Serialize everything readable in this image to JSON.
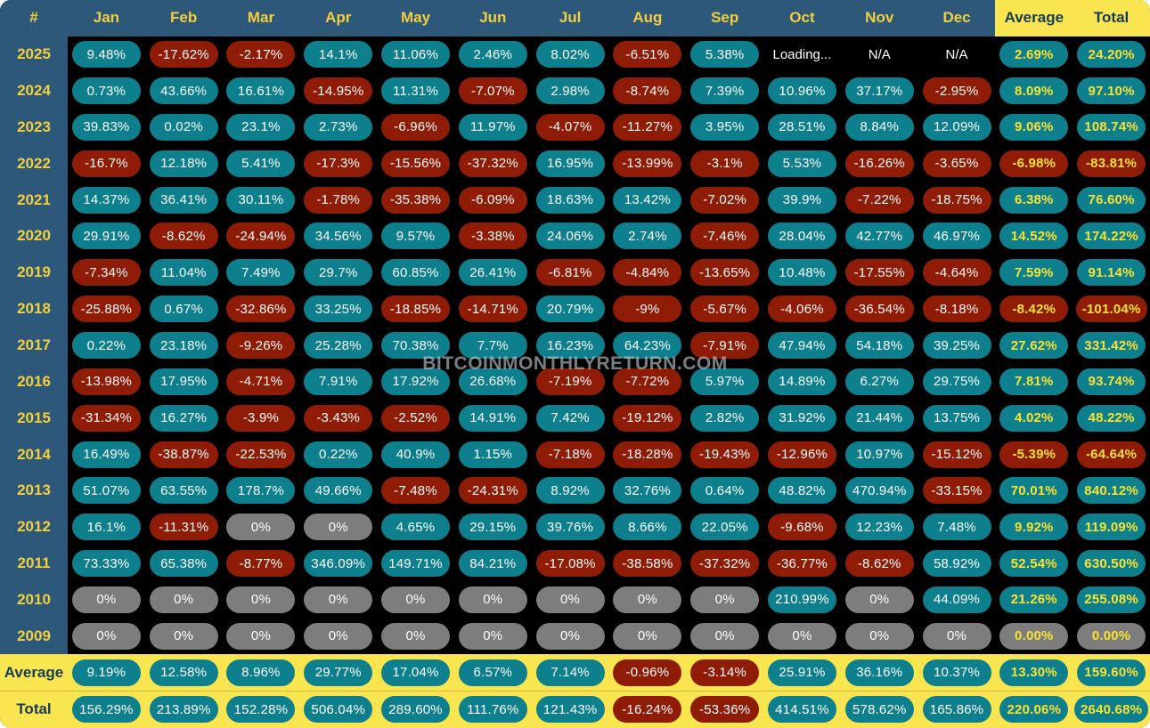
{
  "watermark": "BITCOINMONTHLYRETURN.COM",
  "colors": {
    "positive_pill": "#0e7f8c",
    "negative_pill": "#8e1c07",
    "zero_pill": "#7d7d7d",
    "header_bg": "#2e587a",
    "header_text": "#f2cf3c",
    "accent_yellow_bg": "#f8e54f",
    "accent_dark_text": "#173a57",
    "highlight_value_text": "#f8e234",
    "pill_text": "#fdfdfd",
    "table_bg": "#000000"
  },
  "chart_data": {
    "type": "table",
    "columns": [
      "#",
      "Jan",
      "Feb",
      "Mar",
      "Apr",
      "May",
      "Jun",
      "Jul",
      "Aug",
      "Sep",
      "Oct",
      "Nov",
      "Dec",
      "Average",
      "Total"
    ],
    "rows": [
      {
        "year": "2025",
        "values": [
          "9.48%",
          "-17.62%",
          "-2.17%",
          "14.1%",
          "11.06%",
          "2.46%",
          "8.02%",
          "-6.51%",
          "5.38%",
          "Loading...",
          "N/A",
          "N/A",
          "2.69%",
          "24.20%"
        ]
      },
      {
        "year": "2024",
        "values": [
          "0.73%",
          "43.66%",
          "16.61%",
          "-14.95%",
          "11.31%",
          "-7.07%",
          "2.98%",
          "-8.74%",
          "7.39%",
          "10.96%",
          "37.17%",
          "-2.95%",
          "8.09%",
          "97.10%"
        ]
      },
      {
        "year": "2023",
        "values": [
          "39.83%",
          "0.02%",
          "23.1%",
          "2.73%",
          "-6.96%",
          "11.97%",
          "-4.07%",
          "-11.27%",
          "3.95%",
          "28.51%",
          "8.84%",
          "12.09%",
          "9.06%",
          "108.74%"
        ]
      },
      {
        "year": "2022",
        "values": [
          "-16.7%",
          "12.18%",
          "5.41%",
          "-17.3%",
          "-15.56%",
          "-37.32%",
          "16.95%",
          "-13.99%",
          "-3.1%",
          "5.53%",
          "-16.26%",
          "-3.65%",
          "-6.98%",
          "-83.81%"
        ]
      },
      {
        "year": "2021",
        "values": [
          "14.37%",
          "36.41%",
          "30.11%",
          "-1.78%",
          "-35.38%",
          "-6.09%",
          "18.63%",
          "13.42%",
          "-7.02%",
          "39.9%",
          "-7.22%",
          "-18.75%",
          "6.38%",
          "76.60%"
        ]
      },
      {
        "year": "2020",
        "values": [
          "29.91%",
          "-8.62%",
          "-24.94%",
          "34.56%",
          "9.57%",
          "-3.38%",
          "24.06%",
          "2.74%",
          "-7.46%",
          "28.04%",
          "42.77%",
          "46.97%",
          "14.52%",
          "174.22%"
        ]
      },
      {
        "year": "2019",
        "values": [
          "-7.34%",
          "11.04%",
          "7.49%",
          "29.7%",
          "60.85%",
          "26.41%",
          "-6.81%",
          "-4.84%",
          "-13.65%",
          "10.48%",
          "-17.55%",
          "-4.64%",
          "7.59%",
          "91.14%"
        ]
      },
      {
        "year": "2018",
        "values": [
          "-25.88%",
          "0.67%",
          "-32.86%",
          "33.25%",
          "-18.85%",
          "-14.71%",
          "20.79%",
          "-9%",
          "-5.67%",
          "-4.06%",
          "-36.54%",
          "-8.18%",
          "-8.42%",
          "-101.04%"
        ]
      },
      {
        "year": "2017",
        "values": [
          "0.22%",
          "23.18%",
          "-9.26%",
          "25.28%",
          "70.38%",
          "7.7%",
          "16.23%",
          "64.23%",
          "-7.91%",
          "47.94%",
          "54.18%",
          "39.25%",
          "27.62%",
          "331.42%"
        ]
      },
      {
        "year": "2016",
        "values": [
          "-13.98%",
          "17.95%",
          "-4.71%",
          "7.91%",
          "17.92%",
          "26.68%",
          "-7.19%",
          "-7.72%",
          "5.97%",
          "14.89%",
          "6.27%",
          "29.75%",
          "7.81%",
          "93.74%"
        ]
      },
      {
        "year": "2015",
        "values": [
          "-31.34%",
          "16.27%",
          "-3.9%",
          "-3.43%",
          "-2.52%",
          "14.91%",
          "7.42%",
          "-19.12%",
          "2.82%",
          "31.92%",
          "21.44%",
          "13.75%",
          "4.02%",
          "48.22%"
        ]
      },
      {
        "year": "2014",
        "values": [
          "16.49%",
          "-38.87%",
          "-22.53%",
          "0.22%",
          "40.9%",
          "1.15%",
          "-7.18%",
          "-18.28%",
          "-19.43%",
          "-12.96%",
          "10.97%",
          "-15.12%",
          "-5.39%",
          "-64.64%"
        ]
      },
      {
        "year": "2013",
        "values": [
          "51.07%",
          "63.55%",
          "178.7%",
          "49.66%",
          "-7.48%",
          "-24.31%",
          "8.92%",
          "32.76%",
          "0.64%",
          "48.82%",
          "470.94%",
          "-33.15%",
          "70.01%",
          "840.12%"
        ]
      },
      {
        "year": "2012",
        "values": [
          "16.1%",
          "-11.31%",
          "0%",
          "0%",
          "4.65%",
          "29.15%",
          "39.76%",
          "8.66%",
          "22.05%",
          "-9.68%",
          "12.23%",
          "7.48%",
          "9.92%",
          "119.09%"
        ]
      },
      {
        "year": "2011",
        "values": [
          "73.33%",
          "65.38%",
          "-8.77%",
          "346.09%",
          "149.71%",
          "84.21%",
          "-17.08%",
          "-38.58%",
          "-37.32%",
          "-36.77%",
          "-8.62%",
          "58.92%",
          "52.54%",
          "630.50%"
        ]
      },
      {
        "year": "2010",
        "values": [
          "0%",
          "0%",
          "0%",
          "0%",
          "0%",
          "0%",
          "0%",
          "0%",
          "0%",
          "210.99%",
          "0%",
          "44.09%",
          "21.26%",
          "255.08%"
        ]
      },
      {
        "year": "2009",
        "values": [
          "0%",
          "0%",
          "0%",
          "0%",
          "0%",
          "0%",
          "0%",
          "0%",
          "0%",
          "0%",
          "0%",
          "0%",
          "0.00%",
          "0.00%"
        ]
      }
    ],
    "footer_rows": [
      {
        "label": "Average",
        "values": [
          "9.19%",
          "12.58%",
          "8.96%",
          "29.77%",
          "17.04%",
          "6.57%",
          "7.14%",
          "-0.96%",
          "-3.14%",
          "25.91%",
          "36.16%",
          "10.37%",
          "13.30%",
          "159.60%"
        ]
      },
      {
        "label": "Total",
        "values": [
          "156.29%",
          "213.89%",
          "152.28%",
          "506.04%",
          "289.60%",
          "111.76%",
          "121.43%",
          "-16.24%",
          "-53.36%",
          "414.51%",
          "578.62%",
          "165.86%",
          "220.06%",
          "2640.68%"
        ]
      }
    ]
  }
}
